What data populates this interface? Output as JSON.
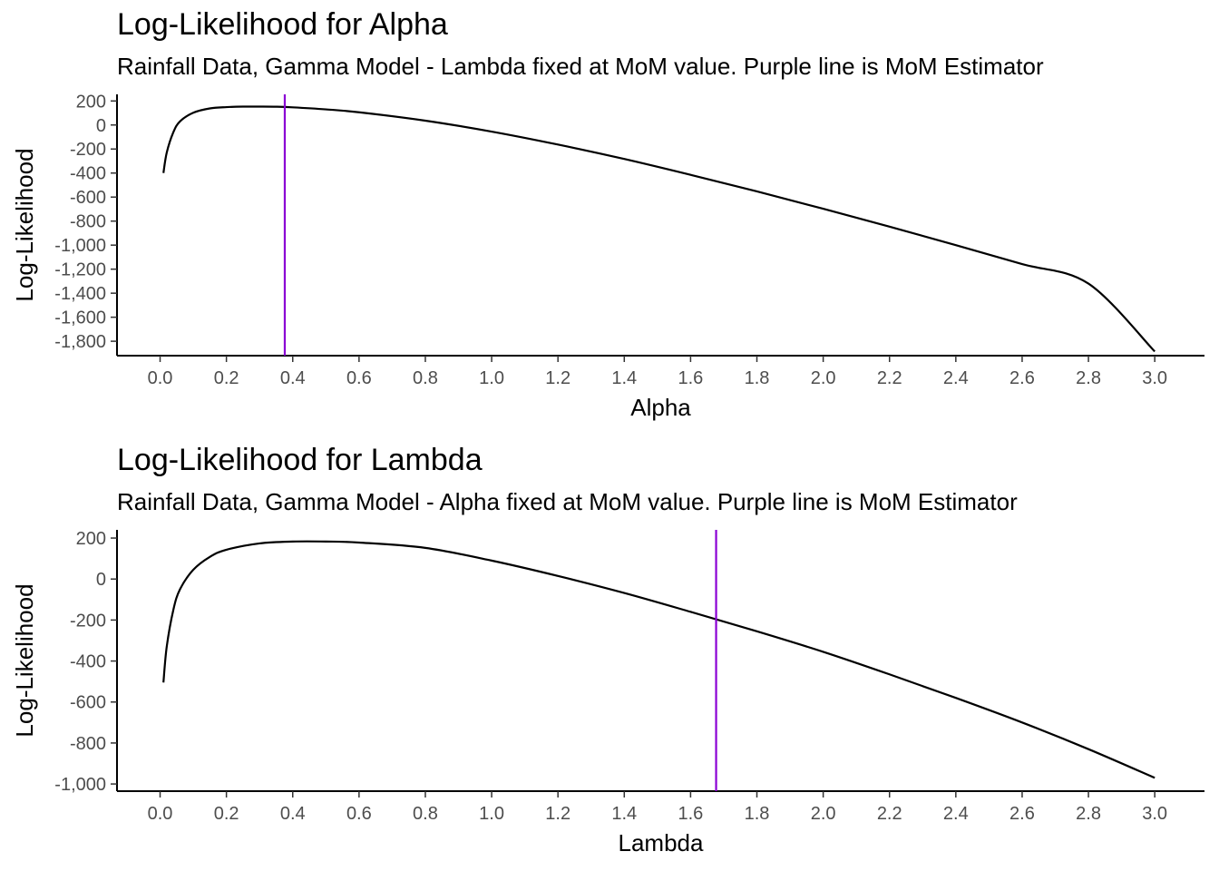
{
  "chart_data": [
    {
      "type": "line",
      "title": "Log-Likelihood for Alpha",
      "subtitle": "Rainfall Data, Gamma Model - Lambda fixed at MoM value. Purple line is MoM Estimator",
      "xlabel": "Alpha",
      "ylabel": "Log-Likelihood",
      "xlim": [
        -0.13,
        3.15
      ],
      "ylim": [
        -1920,
        255
      ],
      "x_ticks": [
        0.0,
        0.2,
        0.4,
        0.6,
        0.8,
        1.0,
        1.2,
        1.4,
        1.6,
        1.8,
        2.0,
        2.2,
        2.4,
        2.6,
        2.8,
        3.0
      ],
      "x_tick_labels": [
        "0.0",
        "0.2",
        "0.4",
        "0.6",
        "0.8",
        "1.0",
        "1.2",
        "1.4",
        "1.6",
        "1.8",
        "2.0",
        "2.2",
        "2.4",
        "2.6",
        "2.8",
        "3.0"
      ],
      "y_ticks": [
        200,
        0,
        -200,
        -400,
        -600,
        -800,
        -1000,
        -1200,
        -1400,
        -1600,
        -1800
      ],
      "y_tick_labels": [
        "200",
        "0",
        "-200",
        "-400",
        "-600",
        "-800",
        "-1,000",
        "-1,200",
        "-1,400",
        "-1,600",
        "-1,800"
      ],
      "series": [
        {
          "color": "#000000",
          "x": [
            0.01,
            0.02,
            0.04,
            0.06,
            0.1,
            0.15,
            0.2,
            0.25,
            0.3,
            0.35,
            0.4,
            0.5,
            0.6,
            0.8,
            1.0,
            1.2,
            1.4,
            1.6,
            1.8,
            2.0,
            2.2,
            2.4,
            2.6,
            2.8,
            3.0
          ],
          "y": [
            -400,
            -230,
            -60,
            30,
            102,
            138,
            149,
            153,
            153,
            152,
            147,
            130,
            106,
            36,
            -55,
            -163,
            -283,
            -415,
            -553,
            -697,
            -846,
            -1000,
            -1158,
            -1320,
            -1885
          ]
        }
      ],
      "vline": {
        "x": 0.376,
        "color": "#8A00D4",
        "label": "MoM Estimator"
      },
      "grid": false
    },
    {
      "type": "line",
      "title": "Log-Likelihood for Lambda",
      "subtitle": "Rainfall Data, Gamma Model - Alpha fixed at MoM value. Purple line is MoM Estimator",
      "xlabel": "Lambda",
      "ylabel": "Log-Likelihood",
      "xlim": [
        -0.13,
        3.15
      ],
      "ylim": [
        -1035,
        240
      ],
      "x_ticks": [
        0.0,
        0.2,
        0.4,
        0.6,
        0.8,
        1.0,
        1.2,
        1.4,
        1.6,
        1.8,
        2.0,
        2.2,
        2.4,
        2.6,
        2.8,
        3.0
      ],
      "x_tick_labels": [
        "0.0",
        "0.2",
        "0.4",
        "0.6",
        "0.8",
        "1.0",
        "1.2",
        "1.4",
        "1.6",
        "1.8",
        "2.0",
        "2.2",
        "2.4",
        "2.6",
        "2.8",
        "3.0"
      ],
      "y_ticks": [
        200,
        0,
        -200,
        -400,
        -600,
        -800,
        -1000
      ],
      "y_tick_labels": [
        "200",
        "0",
        "-200",
        "-400",
        "-600",
        "-800",
        "-1,000"
      ],
      "series": [
        {
          "color": "#000000",
          "x": [
            0.01,
            0.02,
            0.04,
            0.06,
            0.1,
            0.15,
            0.2,
            0.3,
            0.4,
            0.5,
            0.6,
            0.8,
            1.0,
            1.2,
            1.4,
            1.6,
            1.8,
            2.0,
            2.2,
            2.4,
            2.6,
            2.8,
            3.0
          ],
          "y": [
            -505,
            -330,
            -150,
            -50,
            45,
            108,
            143,
            174,
            183,
            183,
            178,
            152,
            90,
            15,
            -68,
            -160,
            -255,
            -355,
            -465,
            -580,
            -700,
            -830,
            -970
          ]
        }
      ],
      "vline": {
        "x": 1.677,
        "color": "#8A00D4",
        "label": "MoM Estimator"
      },
      "grid": false
    }
  ]
}
